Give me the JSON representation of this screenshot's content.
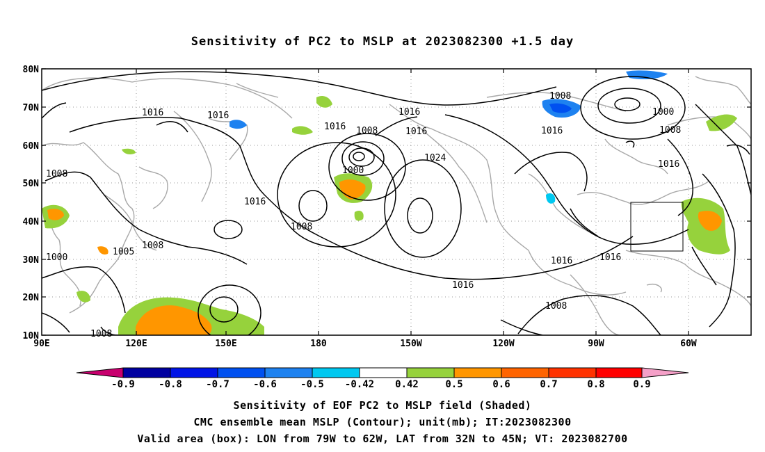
{
  "title": "Sensitivity of PC2 to MSLP at 2023082300 +1.5 day",
  "lat_labels": [
    "80N",
    "70N",
    "60N",
    "50N",
    "40N",
    "30N",
    "20N",
    "10N"
  ],
  "lon_labels": [
    "90E",
    "120E",
    "150E",
    "180",
    "150W",
    "120W",
    "90W",
    "60W"
  ],
  "contour_labels": [
    "1016",
    "1016",
    "1016",
    "1016",
    "1008",
    "1016",
    "1024",
    "1008",
    "1016",
    "1000",
    "1016",
    "1008",
    "1000",
    "1008",
    "1016",
    "1008",
    "1016",
    "1016",
    "1000",
    "1008",
    "1005",
    "1016",
    "1008",
    "1008"
  ],
  "colorbar": {
    "labels": [
      "-0.9",
      "-0.8",
      "-0.7",
      "-0.6",
      "-0.5",
      "-0.42",
      "0.42",
      "0.5",
      "0.6",
      "0.7",
      "0.8",
      "0.9"
    ],
    "colors": [
      "#c8006e",
      "#0000a0",
      "#0014e6",
      "#0050f0",
      "#1e82f0",
      "#00c8f0",
      "#ffffff",
      "#96d23c",
      "#ff9600",
      "#ff6400",
      "#ff3200",
      "#ff0000",
      "#f5a0c8"
    ]
  },
  "valid_box": {
    "lon_min": -79,
    "lon_max": -62,
    "lat_min": 32,
    "lat_max": 45
  },
  "captions": [
    "Sensitivity of EOF PC2 to MSLP field (Shaded)",
    "CMC ensemble mean MSLP (Contour); unit(mb); IT:2023082300",
    "Valid area (box): LON from 79W to 62W, LAT from 32N to 45N; VT: 2023082700"
  ]
}
